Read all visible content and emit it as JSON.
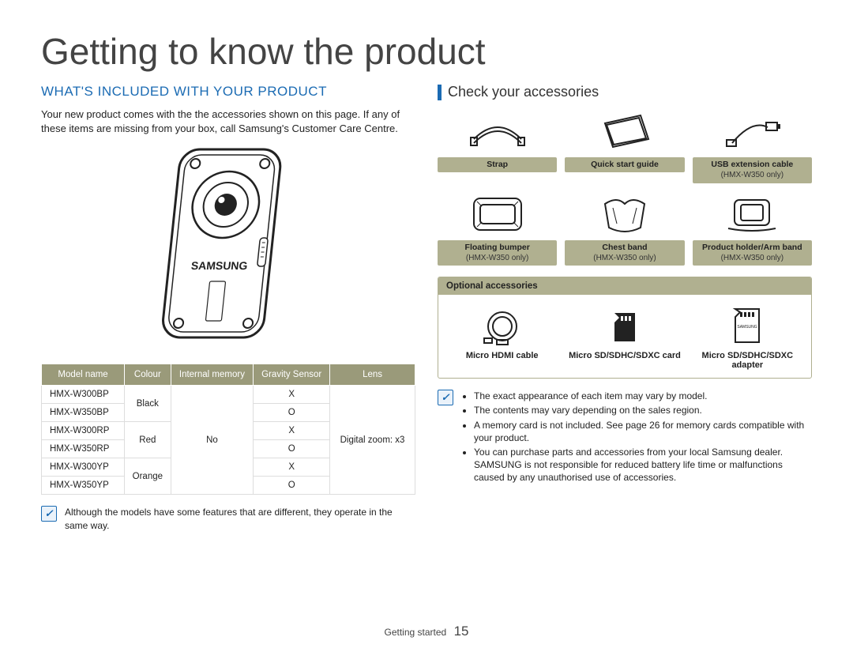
{
  "colors": {
    "olive": "#9a9a7a",
    "oliveLight": "#b0b090",
    "blue": "#1b6bb3",
    "text": "#222222",
    "border": "#cccccc",
    "background": "#ffffff"
  },
  "main_title": "Getting to know the product",
  "left": {
    "section_title": "WHAT'S INCLUDED WITH YOUR PRODUCT",
    "body": "Your new product comes with the the accessories shown on this page. If any of these items are missing from your box, call Samsung's Customer Care Centre.",
    "product_logo": "SAMSUNG",
    "table": {
      "headers": [
        "Model name",
        "Colour",
        "Internal memory",
        "Gravity Sensor",
        "Lens"
      ],
      "rows": [
        {
          "model": "HMX-W300BP",
          "colour": "Black",
          "memory": "No",
          "gravity": "X",
          "lens": "Digital zoom: x3"
        },
        {
          "model": "HMX-W350BP",
          "colour": "Black",
          "memory": "No",
          "gravity": "O",
          "lens": "Digital zoom: x3"
        },
        {
          "model": "HMX-W300RP",
          "colour": "Red",
          "memory": "No",
          "gravity": "X",
          "lens": "Digital zoom: x3"
        },
        {
          "model": "HMX-W350RP",
          "colour": "Red",
          "memory": "No",
          "gravity": "O",
          "lens": "Digital zoom: x3"
        },
        {
          "model": "HMX-W300YP",
          "colour": "Orange",
          "memory": "No",
          "gravity": "X",
          "lens": "Digital zoom: x3"
        },
        {
          "model": "HMX-W350YP",
          "colour": "Orange",
          "memory": "No",
          "gravity": "O",
          "lens": "Digital zoom: x3"
        }
      ],
      "colour_groups": [
        {
          "label": "Black",
          "span": 2
        },
        {
          "label": "Red",
          "span": 2
        },
        {
          "label": "Orange",
          "span": 2
        }
      ],
      "memory_value": "No",
      "lens_value": "Digital zoom: x3"
    },
    "note": "Although the models have some features that are different, they operate in the same way."
  },
  "right": {
    "sub_heading": "Check your accessories",
    "accessories": [
      {
        "name": "Strap",
        "sub": "",
        "icon": "strap"
      },
      {
        "name": "Quick start guide",
        "sub": "",
        "icon": "guide"
      },
      {
        "name": "USB extension cable",
        "sub": "(HMX-W350 only)",
        "icon": "usb"
      },
      {
        "name": "Floating bumper",
        "sub": "(HMX-W350 only)",
        "icon": "bumper"
      },
      {
        "name": "Chest band",
        "sub": "(HMX-W350 only)",
        "icon": "chest"
      },
      {
        "name": "Product holder/Arm band",
        "sub": "(HMX-W350 only)",
        "icon": "holder"
      }
    ],
    "optional_header": "Optional accessories",
    "optional": [
      {
        "name": "Micro HDMI cable",
        "icon": "hdmi"
      },
      {
        "name": "Micro SD/SDHC/SDXC card",
        "icon": "microsd"
      },
      {
        "name": "Micro SD/SDHC/SDXC adapter",
        "icon": "sdadapter"
      }
    ],
    "notes": [
      "The exact appearance of each item may vary by model.",
      "The contents may vary depending on the sales region.",
      "A memory card is not included. See page 26 for memory cards compatible with your product.",
      "You can purchase parts and accessories from your local Samsung dealer. SAMSUNG is not responsible for reduced battery life time or malfunctions caused by any unauthorised use of accessories."
    ]
  },
  "footer": {
    "section": "Getting started",
    "page": "15"
  }
}
